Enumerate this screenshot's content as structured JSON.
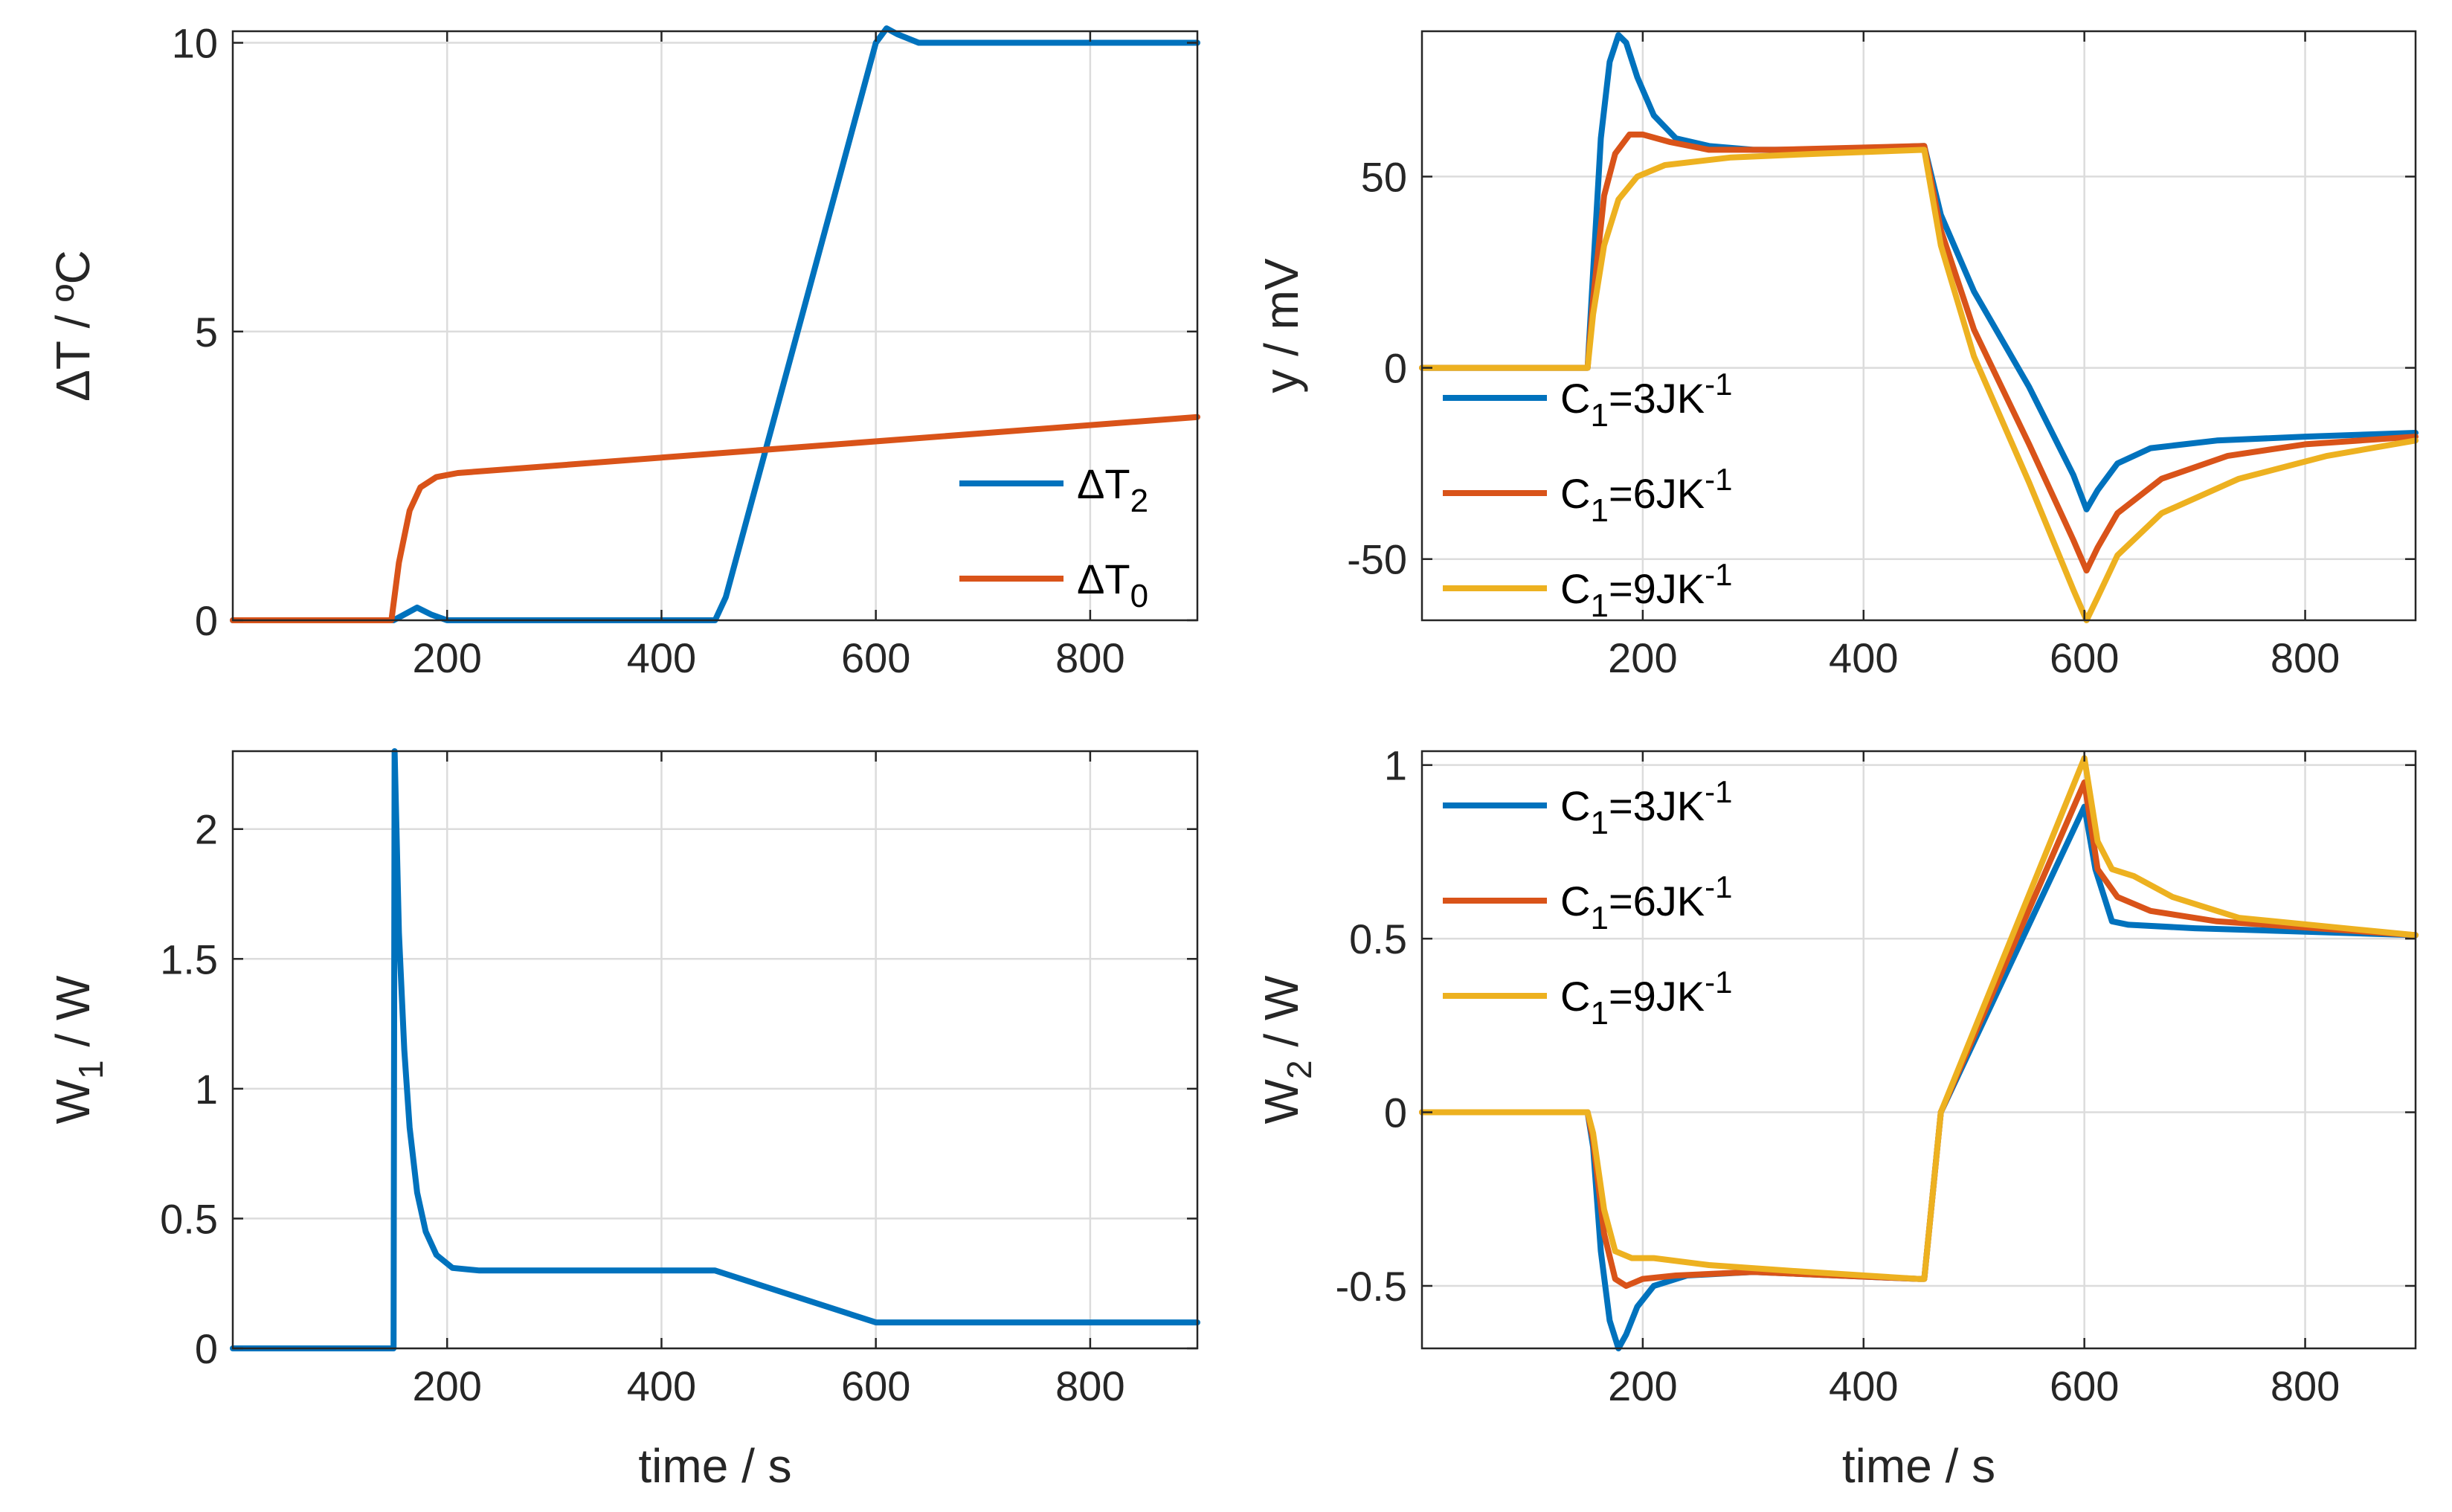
{
  "colors": {
    "blue": "#0072BD",
    "orange": "#D95319",
    "yellow": "#EDB120"
  },
  "chart_data": [
    {
      "type": "line",
      "title": "",
      "xlabel": "",
      "ylabel": "ΔT / ºC",
      "xlim": [
        0,
        900
      ],
      "ylim": [
        0,
        10.2
      ],
      "xticks": [
        200,
        400,
        600,
        800
      ],
      "xtick_labels": [
        "200",
        "400",
        "600",
        "800"
      ],
      "yticks": [
        0,
        5,
        10
      ],
      "ytick_labels": [
        "0",
        "5",
        "10"
      ],
      "grid": true,
      "legend": {
        "position": "bottom-right",
        "entries": [
          {
            "base": "ΔT",
            "sub": "2",
            "sup": ""
          },
          {
            "base": "ΔT",
            "sub": "0",
            "sup": ""
          }
        ]
      },
      "series": [
        {
          "name": "ΔT2",
          "color": "#0072BD",
          "points": [
            [
              0,
              0
            ],
            [
              150,
              0
            ],
            [
              162,
              0.12
            ],
            [
              172,
              0.22
            ],
            [
              185,
              0.1
            ],
            [
              200,
              0
            ],
            [
              450,
              0
            ],
            [
              460,
              0.4
            ],
            [
              600,
              10.0
            ],
            [
              610,
              10.25
            ],
            [
              620,
              10.15
            ],
            [
              640,
              10.0
            ],
            [
              900,
              10.0
            ]
          ]
        },
        {
          "name": "ΔT0",
          "color": "#D95319",
          "points": [
            [
              0,
              0
            ],
            [
              148,
              0
            ],
            [
              155,
              1.0
            ],
            [
              165,
              1.9
            ],
            [
              175,
              2.3
            ],
            [
              190,
              2.48
            ],
            [
              210,
              2.55
            ],
            [
              900,
              3.52
            ]
          ]
        }
      ]
    },
    {
      "type": "line",
      "title": "",
      "xlabel": "",
      "ylabel": "y / mV",
      "xlim": [
        0,
        900
      ],
      "ylim": [
        -66,
        88
      ],
      "xticks": [
        200,
        400,
        600,
        800
      ],
      "xtick_labels": [
        "200",
        "400",
        "600",
        "800"
      ],
      "yticks": [
        -50,
        0,
        50
      ],
      "ytick_labels": [
        "-50",
        "0",
        "50"
      ],
      "grid": true,
      "legend": {
        "position": "bottom-left",
        "entries": [
          {
            "base": "C",
            "sub": "1",
            "sup": "-1",
            "rest": "=3JK"
          },
          {
            "base": "C",
            "sub": "1",
            "sup": "-1",
            "rest": "=6JK"
          },
          {
            "base": "C",
            "sub": "1",
            "sup": "-1",
            "rest": "=9JK"
          }
        ]
      },
      "series": [
        {
          "name": "C1=3JK-1",
          "color": "#0072BD",
          "points": [
            [
              0,
              0
            ],
            [
              150,
              0
            ],
            [
              155,
              25
            ],
            [
              162,
              60
            ],
            [
              170,
              80
            ],
            [
              178,
              87
            ],
            [
              185,
              85
            ],
            [
              195,
              76
            ],
            [
              210,
              66
            ],
            [
              230,
              60
            ],
            [
              260,
              58
            ],
            [
              300,
              57
            ],
            [
              360,
              57
            ],
            [
              455,
              58
            ],
            [
              470,
              40
            ],
            [
              500,
              20
            ],
            [
              550,
              -5
            ],
            [
              590,
              -28
            ],
            [
              602,
              -37
            ],
            [
              612,
              -32
            ],
            [
              630,
              -25
            ],
            [
              660,
              -21
            ],
            [
              720,
              -19
            ],
            [
              800,
              -18
            ],
            [
              900,
              -17
            ]
          ]
        },
        {
          "name": "C1=6JK-1",
          "color": "#D95319",
          "points": [
            [
              0,
              0
            ],
            [
              150,
              0
            ],
            [
              155,
              18
            ],
            [
              165,
              45
            ],
            [
              175,
              56
            ],
            [
              188,
              61
            ],
            [
              200,
              61
            ],
            [
              225,
              59
            ],
            [
              260,
              57
            ],
            [
              320,
              57
            ],
            [
              455,
              58
            ],
            [
              470,
              36
            ],
            [
              500,
              10
            ],
            [
              550,
              -20
            ],
            [
              590,
              -45
            ],
            [
              602,
              -53
            ],
            [
              612,
              -47
            ],
            [
              630,
              -38
            ],
            [
              670,
              -29
            ],
            [
              730,
              -23
            ],
            [
              800,
              -20
            ],
            [
              900,
              -18
            ]
          ]
        },
        {
          "name": "C1=9JK-1",
          "color": "#EDB120",
          "points": [
            [
              0,
              0
            ],
            [
              150,
              0
            ],
            [
              155,
              14
            ],
            [
              165,
              32
            ],
            [
              178,
              44
            ],
            [
              195,
              50
            ],
            [
              220,
              53
            ],
            [
              280,
              55
            ],
            [
              360,
              56
            ],
            [
              455,
              57
            ],
            [
              470,
              32
            ],
            [
              500,
              3
            ],
            [
              550,
              -30
            ],
            [
              590,
              -58
            ],
            [
              602,
              -66
            ],
            [
              612,
              -60
            ],
            [
              630,
              -49
            ],
            [
              670,
              -38
            ],
            [
              740,
              -29
            ],
            [
              820,
              -23
            ],
            [
              900,
              -19
            ]
          ]
        }
      ]
    },
    {
      "type": "line",
      "title": "",
      "xlabel": "time / s",
      "ylabel": "W1 / W",
      "ylabel_base": "W",
      "ylabel_sub": "1",
      "ylabel_rest": " / W",
      "xlim": [
        0,
        900
      ],
      "ylim": [
        0,
        2.3
      ],
      "xticks": [
        200,
        400,
        600,
        800
      ],
      "xtick_labels": [
        "200",
        "400",
        "600",
        "800"
      ],
      "yticks": [
        0,
        0.5,
        1,
        1.5,
        2
      ],
      "ytick_labels": [
        "0",
        "0.5",
        "1",
        "1.5",
        "2"
      ],
      "grid": true,
      "series": [
        {
          "name": "W1",
          "color": "#0072BD",
          "points": [
            [
              0,
              0
            ],
            [
              150,
              0
            ],
            [
              151,
              2.3
            ],
            [
              155,
              1.6
            ],
            [
              160,
              1.15
            ],
            [
              165,
              0.85
            ],
            [
              172,
              0.6
            ],
            [
              180,
              0.45
            ],
            [
              190,
              0.36
            ],
            [
              205,
              0.31
            ],
            [
              230,
              0.3
            ],
            [
              450,
              0.3
            ],
            [
              600,
              0.1
            ],
            [
              900,
              0.1
            ]
          ]
        }
      ]
    },
    {
      "type": "line",
      "title": "",
      "xlabel": "time / s",
      "ylabel": "W2 / W",
      "ylabel_base": "W",
      "ylabel_sub": "2",
      "ylabel_rest": " / W",
      "xlim": [
        0,
        900
      ],
      "ylim": [
        -0.68,
        1.04
      ],
      "xticks": [
        200,
        400,
        600,
        800
      ],
      "xtick_labels": [
        "200",
        "400",
        "600",
        "800"
      ],
      "yticks": [
        -0.5,
        0,
        0.5,
        1
      ],
      "ytick_labels": [
        "-0.5",
        "0",
        "0.5",
        "1"
      ],
      "grid": true,
      "legend": {
        "position": "top-left",
        "entries": [
          {
            "base": "C",
            "sub": "1",
            "sup": "-1",
            "rest": "=3JK"
          },
          {
            "base": "C",
            "sub": "1",
            "sup": "-1",
            "rest": "=6JK"
          },
          {
            "base": "C",
            "sub": "1",
            "sup": "-1",
            "rest": "=9JK"
          }
        ]
      },
      "series": [
        {
          "name": "C1=3JK-1",
          "color": "#0072BD",
          "points": [
            [
              0,
              0
            ],
            [
              150,
              0
            ],
            [
              155,
              -0.1
            ],
            [
              162,
              -0.4
            ],
            [
              170,
              -0.6
            ],
            [
              178,
              -0.68
            ],
            [
              185,
              -0.64
            ],
            [
              195,
              -0.56
            ],
            [
              210,
              -0.5
            ],
            [
              240,
              -0.47
            ],
            [
              300,
              -0.46
            ],
            [
              450,
              -0.48
            ],
            [
              455,
              -0.48
            ],
            [
              470,
              0
            ],
            [
              600,
              0.88
            ],
            [
              610,
              0.7
            ],
            [
              625,
              0.55
            ],
            [
              640,
              0.54
            ],
            [
              700,
              0.53
            ],
            [
              900,
              0.51
            ]
          ]
        },
        {
          "name": "C1=6JK-1",
          "color": "#D95319",
          "points": [
            [
              0,
              0
            ],
            [
              150,
              0
            ],
            [
              155,
              -0.08
            ],
            [
              165,
              -0.35
            ],
            [
              175,
              -0.48
            ],
            [
              185,
              -0.5
            ],
            [
              200,
              -0.48
            ],
            [
              230,
              -0.47
            ],
            [
              300,
              -0.46
            ],
            [
              450,
              -0.48
            ],
            [
              455,
              -0.48
            ],
            [
              470,
              0
            ],
            [
              600,
              0.95
            ],
            [
              612,
              0.7
            ],
            [
              630,
              0.62
            ],
            [
              660,
              0.58
            ],
            [
              720,
              0.55
            ],
            [
              900,
              0.51
            ]
          ]
        },
        {
          "name": "C1=9JK-1",
          "color": "#EDB120",
          "points": [
            [
              0,
              0
            ],
            [
              150,
              0
            ],
            [
              155,
              -0.06
            ],
            [
              165,
              -0.28
            ],
            [
              175,
              -0.4
            ],
            [
              190,
              -0.42
            ],
            [
              210,
              -0.42
            ],
            [
              260,
              -0.44
            ],
            [
              350,
              -0.46
            ],
            [
              450,
              -0.48
            ],
            [
              455,
              -0.48
            ],
            [
              470,
              0
            ],
            [
              600,
              1.02
            ],
            [
              612,
              0.78
            ],
            [
              625,
              0.7
            ],
            [
              645,
              0.68
            ],
            [
              680,
              0.62
            ],
            [
              740,
              0.56
            ],
            [
              900,
              0.51
            ]
          ]
        }
      ]
    }
  ]
}
